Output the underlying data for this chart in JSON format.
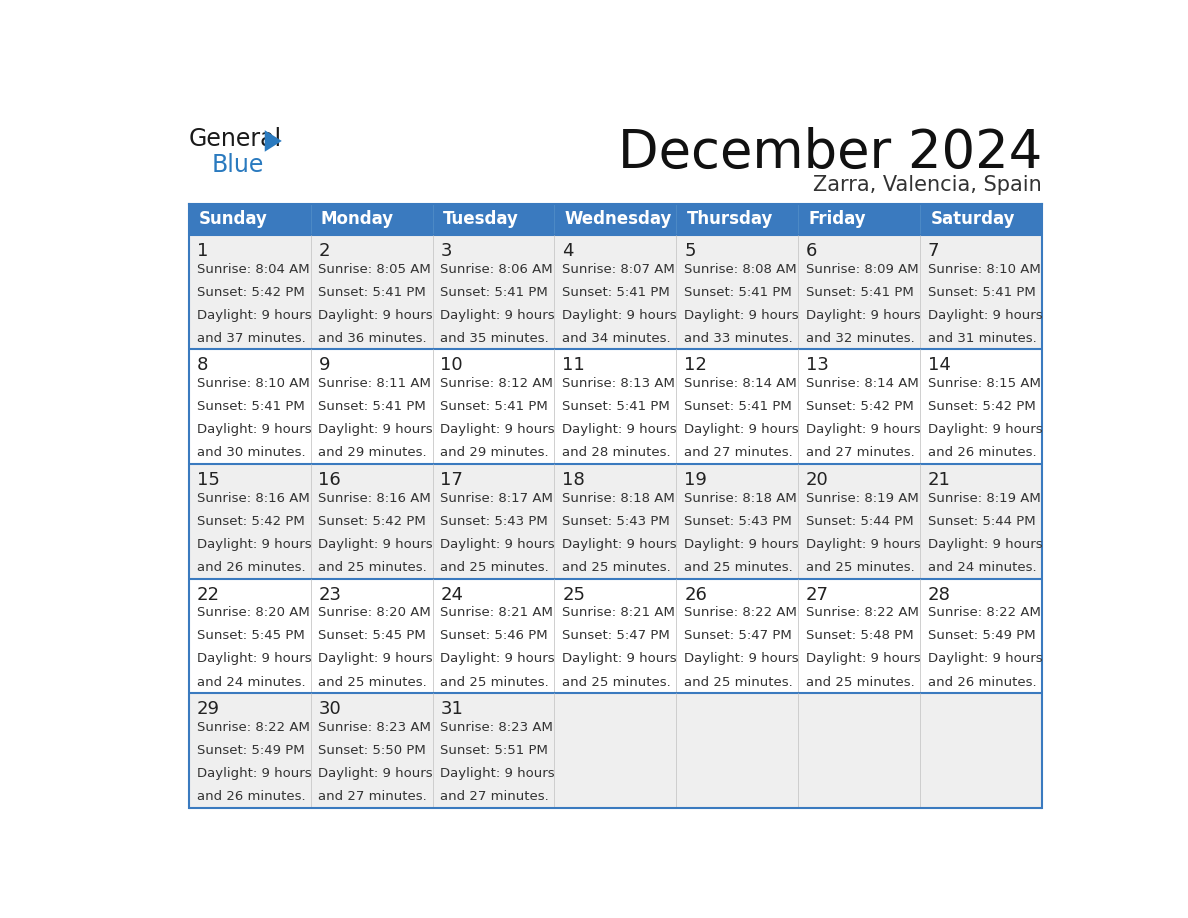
{
  "title": "December 2024",
  "subtitle": "Zarra, Valencia, Spain",
  "header_bg_color": "#3a7abf",
  "header_text_color": "#ffffff",
  "row_bg_colors": [
    "#efefef",
    "#ffffff",
    "#efefef",
    "#ffffff",
    "#efefef"
  ],
  "cell_text_color": "#333333",
  "border_color": "#3a7abf",
  "day_names": [
    "Sunday",
    "Monday",
    "Tuesday",
    "Wednesday",
    "Thursday",
    "Friday",
    "Saturday"
  ],
  "weeks": [
    [
      {
        "day": 1,
        "sunrise": "8:04 AM",
        "sunset": "5:42 PM",
        "daylight": "9 hours and 37 minutes."
      },
      {
        "day": 2,
        "sunrise": "8:05 AM",
        "sunset": "5:41 PM",
        "daylight": "9 hours and 36 minutes."
      },
      {
        "day": 3,
        "sunrise": "8:06 AM",
        "sunset": "5:41 PM",
        "daylight": "9 hours and 35 minutes."
      },
      {
        "day": 4,
        "sunrise": "8:07 AM",
        "sunset": "5:41 PM",
        "daylight": "9 hours and 34 minutes."
      },
      {
        "day": 5,
        "sunrise": "8:08 AM",
        "sunset": "5:41 PM",
        "daylight": "9 hours and 33 minutes."
      },
      {
        "day": 6,
        "sunrise": "8:09 AM",
        "sunset": "5:41 PM",
        "daylight": "9 hours and 32 minutes."
      },
      {
        "day": 7,
        "sunrise": "8:10 AM",
        "sunset": "5:41 PM",
        "daylight": "9 hours and 31 minutes."
      }
    ],
    [
      {
        "day": 8,
        "sunrise": "8:10 AM",
        "sunset": "5:41 PM",
        "daylight": "9 hours and 30 minutes."
      },
      {
        "day": 9,
        "sunrise": "8:11 AM",
        "sunset": "5:41 PM",
        "daylight": "9 hours and 29 minutes."
      },
      {
        "day": 10,
        "sunrise": "8:12 AM",
        "sunset": "5:41 PM",
        "daylight": "9 hours and 29 minutes."
      },
      {
        "day": 11,
        "sunrise": "8:13 AM",
        "sunset": "5:41 PM",
        "daylight": "9 hours and 28 minutes."
      },
      {
        "day": 12,
        "sunrise": "8:14 AM",
        "sunset": "5:41 PM",
        "daylight": "9 hours and 27 minutes."
      },
      {
        "day": 13,
        "sunrise": "8:14 AM",
        "sunset": "5:42 PM",
        "daylight": "9 hours and 27 minutes."
      },
      {
        "day": 14,
        "sunrise": "8:15 AM",
        "sunset": "5:42 PM",
        "daylight": "9 hours and 26 minutes."
      }
    ],
    [
      {
        "day": 15,
        "sunrise": "8:16 AM",
        "sunset": "5:42 PM",
        "daylight": "9 hours and 26 minutes."
      },
      {
        "day": 16,
        "sunrise": "8:16 AM",
        "sunset": "5:42 PM",
        "daylight": "9 hours and 25 minutes."
      },
      {
        "day": 17,
        "sunrise": "8:17 AM",
        "sunset": "5:43 PM",
        "daylight": "9 hours and 25 minutes."
      },
      {
        "day": 18,
        "sunrise": "8:18 AM",
        "sunset": "5:43 PM",
        "daylight": "9 hours and 25 minutes."
      },
      {
        "day": 19,
        "sunrise": "8:18 AM",
        "sunset": "5:43 PM",
        "daylight": "9 hours and 25 minutes."
      },
      {
        "day": 20,
        "sunrise": "8:19 AM",
        "sunset": "5:44 PM",
        "daylight": "9 hours and 25 minutes."
      },
      {
        "day": 21,
        "sunrise": "8:19 AM",
        "sunset": "5:44 PM",
        "daylight": "9 hours and 24 minutes."
      }
    ],
    [
      {
        "day": 22,
        "sunrise": "8:20 AM",
        "sunset": "5:45 PM",
        "daylight": "9 hours and 24 minutes."
      },
      {
        "day": 23,
        "sunrise": "8:20 AM",
        "sunset": "5:45 PM",
        "daylight": "9 hours and 25 minutes."
      },
      {
        "day": 24,
        "sunrise": "8:21 AM",
        "sunset": "5:46 PM",
        "daylight": "9 hours and 25 minutes."
      },
      {
        "day": 25,
        "sunrise": "8:21 AM",
        "sunset": "5:47 PM",
        "daylight": "9 hours and 25 minutes."
      },
      {
        "day": 26,
        "sunrise": "8:22 AM",
        "sunset": "5:47 PM",
        "daylight": "9 hours and 25 minutes."
      },
      {
        "day": 27,
        "sunrise": "8:22 AM",
        "sunset": "5:48 PM",
        "daylight": "9 hours and 25 minutes."
      },
      {
        "day": 28,
        "sunrise": "8:22 AM",
        "sunset": "5:49 PM",
        "daylight": "9 hours and 26 minutes."
      }
    ],
    [
      {
        "day": 29,
        "sunrise": "8:22 AM",
        "sunset": "5:49 PM",
        "daylight": "9 hours and 26 minutes."
      },
      {
        "day": 30,
        "sunrise": "8:23 AM",
        "sunset": "5:50 PM",
        "daylight": "9 hours and 27 minutes."
      },
      {
        "day": 31,
        "sunrise": "8:23 AM",
        "sunset": "5:51 PM",
        "daylight": "9 hours and 27 minutes."
      },
      null,
      null,
      null,
      null
    ]
  ],
  "logo_general_color": "#1a1a1a",
  "logo_blue_color": "#2a7abf",
  "logo_triangle_color": "#2a7abf",
  "title_fontsize": 38,
  "subtitle_fontsize": 15,
  "header_fontsize": 12,
  "day_num_fontsize": 13,
  "cell_fontsize": 9.5
}
